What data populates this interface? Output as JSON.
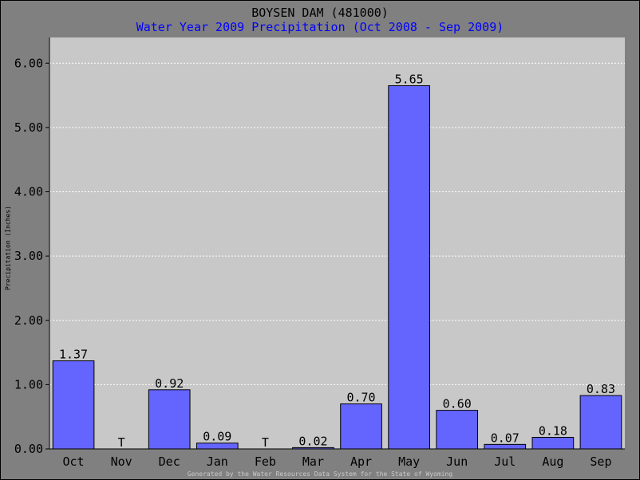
{
  "chart_data": {
    "type": "bar",
    "title": "BOYSEN DAM (481000)",
    "subtitle": "Water Year 2009 Precipitation (Oct 2008 - Sep 2009)",
    "ylabel": "Precipitation (Inches)",
    "xlabel": "",
    "categories": [
      "Oct",
      "Nov",
      "Dec",
      "Jan",
      "Feb",
      "Mar",
      "Apr",
      "May",
      "Jun",
      "Jul",
      "Aug",
      "Sep"
    ],
    "values": [
      1.37,
      0,
      0.92,
      0.09,
      0,
      0.02,
      0.7,
      5.65,
      0.6,
      0.07,
      0.18,
      0.83
    ],
    "value_labels": [
      "1.37",
      "T",
      "0.92",
      "0.09",
      "T",
      "0.02",
      "0.70",
      "5.65",
      "0.60",
      "0.07",
      "0.18",
      "0.83"
    ],
    "ylim": [
      0,
      6.4
    ],
    "yticks": [
      0,
      1,
      2,
      3,
      4,
      5,
      6
    ],
    "ytick_labels": [
      "0.00",
      "1.00",
      "2.00",
      "3.00",
      "4.00",
      "5.00",
      "6.00"
    ],
    "grid": true,
    "bar_color": "#6464ff",
    "plot_background": "#c8c8c8",
    "frame_background": "#808080",
    "subtitle_color": "#0000ff"
  },
  "footer": "Generated by the Water Resources Data System for the State of Wyoming"
}
